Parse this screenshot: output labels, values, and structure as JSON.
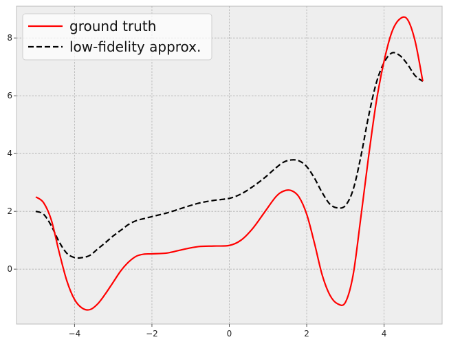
{
  "chart_data": {
    "type": "line",
    "title": "",
    "xlabel": "",
    "ylabel": "",
    "xlim": [
      -5.5,
      5.5
    ],
    "ylim": [
      -1.9,
      9.1
    ],
    "grid": true,
    "legend_position": "top-left",
    "x_ticks": [
      -4,
      -2,
      0,
      2,
      4
    ],
    "x_tick_labels": [
      "−4",
      "−2",
      "0",
      "2",
      "4"
    ],
    "y_ticks": [
      0,
      2,
      4,
      6,
      8
    ],
    "y_tick_labels": [
      "0",
      "2",
      "4",
      "6",
      "8"
    ],
    "x": [
      -5.0,
      -4.8,
      -4.6,
      -4.4,
      -4.2,
      -4.0,
      -3.8,
      -3.6,
      -3.4,
      -3.2,
      -3.0,
      -2.8,
      -2.6,
      -2.4,
      -2.2,
      -2.0,
      -1.6,
      -1.2,
      -0.8,
      -0.4,
      0.0,
      0.3,
      0.6,
      0.9,
      1.2,
      1.4,
      1.6,
      1.8,
      2.0,
      2.2,
      2.4,
      2.6,
      2.8,
      3.0,
      3.2,
      3.4,
      3.6,
      3.8,
      4.0,
      4.2,
      4.4,
      4.6,
      4.8,
      5.0
    ],
    "series": [
      {
        "name": "ground truth",
        "color": "#ff0000",
        "dash": "solid",
        "values": [
          2.5,
          2.3,
          1.7,
          0.6,
          -0.4,
          -1.05,
          -1.35,
          -1.4,
          -1.2,
          -0.85,
          -0.45,
          -0.05,
          0.25,
          0.45,
          0.52,
          0.53,
          0.56,
          0.68,
          0.78,
          0.8,
          0.82,
          1.0,
          1.4,
          1.95,
          2.5,
          2.7,
          2.72,
          2.5,
          1.9,
          0.9,
          -0.2,
          -0.9,
          -1.2,
          -1.15,
          -0.2,
          1.8,
          3.9,
          5.8,
          7.2,
          8.2,
          8.65,
          8.65,
          7.9,
          6.5
        ]
      },
      {
        "name": "low-fidelity approx.",
        "color": "#000000",
        "dash": "dashed",
        "values": [
          2.0,
          1.9,
          1.5,
          0.95,
          0.55,
          0.4,
          0.4,
          0.48,
          0.7,
          0.92,
          1.15,
          1.35,
          1.55,
          1.68,
          1.75,
          1.82,
          1.95,
          2.12,
          2.28,
          2.38,
          2.45,
          2.6,
          2.85,
          3.15,
          3.5,
          3.7,
          3.78,
          3.75,
          3.55,
          3.15,
          2.65,
          2.25,
          2.12,
          2.2,
          2.75,
          3.9,
          5.3,
          6.45,
          7.15,
          7.48,
          7.4,
          7.1,
          6.7,
          6.5
        ]
      }
    ]
  },
  "legend": {
    "items": [
      "ground truth",
      "low-fidelity approx."
    ]
  }
}
